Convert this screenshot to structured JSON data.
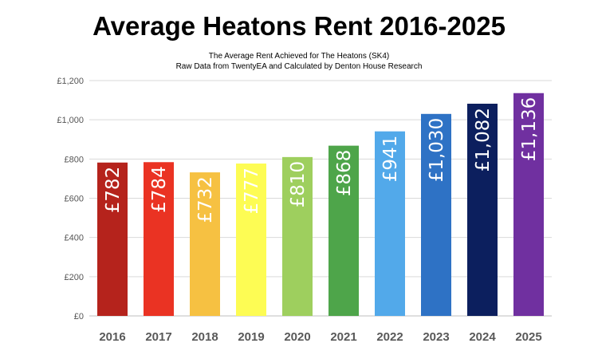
{
  "chart_data": {
    "type": "bar",
    "title": "Average Heatons Rent 2016-2025",
    "subtitle_lines": [
      "The Average Rent Achieved for The Heatons (SK4)",
      "Raw Data from TwentyEA and Calculated by Denton House Research"
    ],
    "categories": [
      "2016",
      "2017",
      "2018",
      "2019",
      "2020",
      "2021",
      "2022",
      "2023",
      "2024",
      "2025"
    ],
    "values": [
      782,
      784,
      732,
      777,
      810,
      868,
      941,
      1030,
      1082,
      1136
    ],
    "data_labels": [
      "£782",
      "£784",
      "£732",
      "£777",
      "£810",
      "£868",
      "£941",
      "£1,030",
      "£1,082",
      "£1,136"
    ],
    "colors": [
      "#b5231c",
      "#ea3323",
      "#f6c142",
      "#fdfc54",
      "#9ecf5e",
      "#4ea54a",
      "#52a9ea",
      "#2e72c5",
      "#0c1f5e",
      "#7030a0"
    ],
    "yticks": [
      0,
      200,
      400,
      600,
      800,
      1000,
      1200
    ],
    "ytick_labels": [
      "£0",
      "£200",
      "£400",
      "£600",
      "£800",
      "£1,000",
      "£1,200"
    ],
    "ylim": [
      0,
      1200
    ],
    "grid": true,
    "xlabel": "",
    "ylabel": ""
  }
}
